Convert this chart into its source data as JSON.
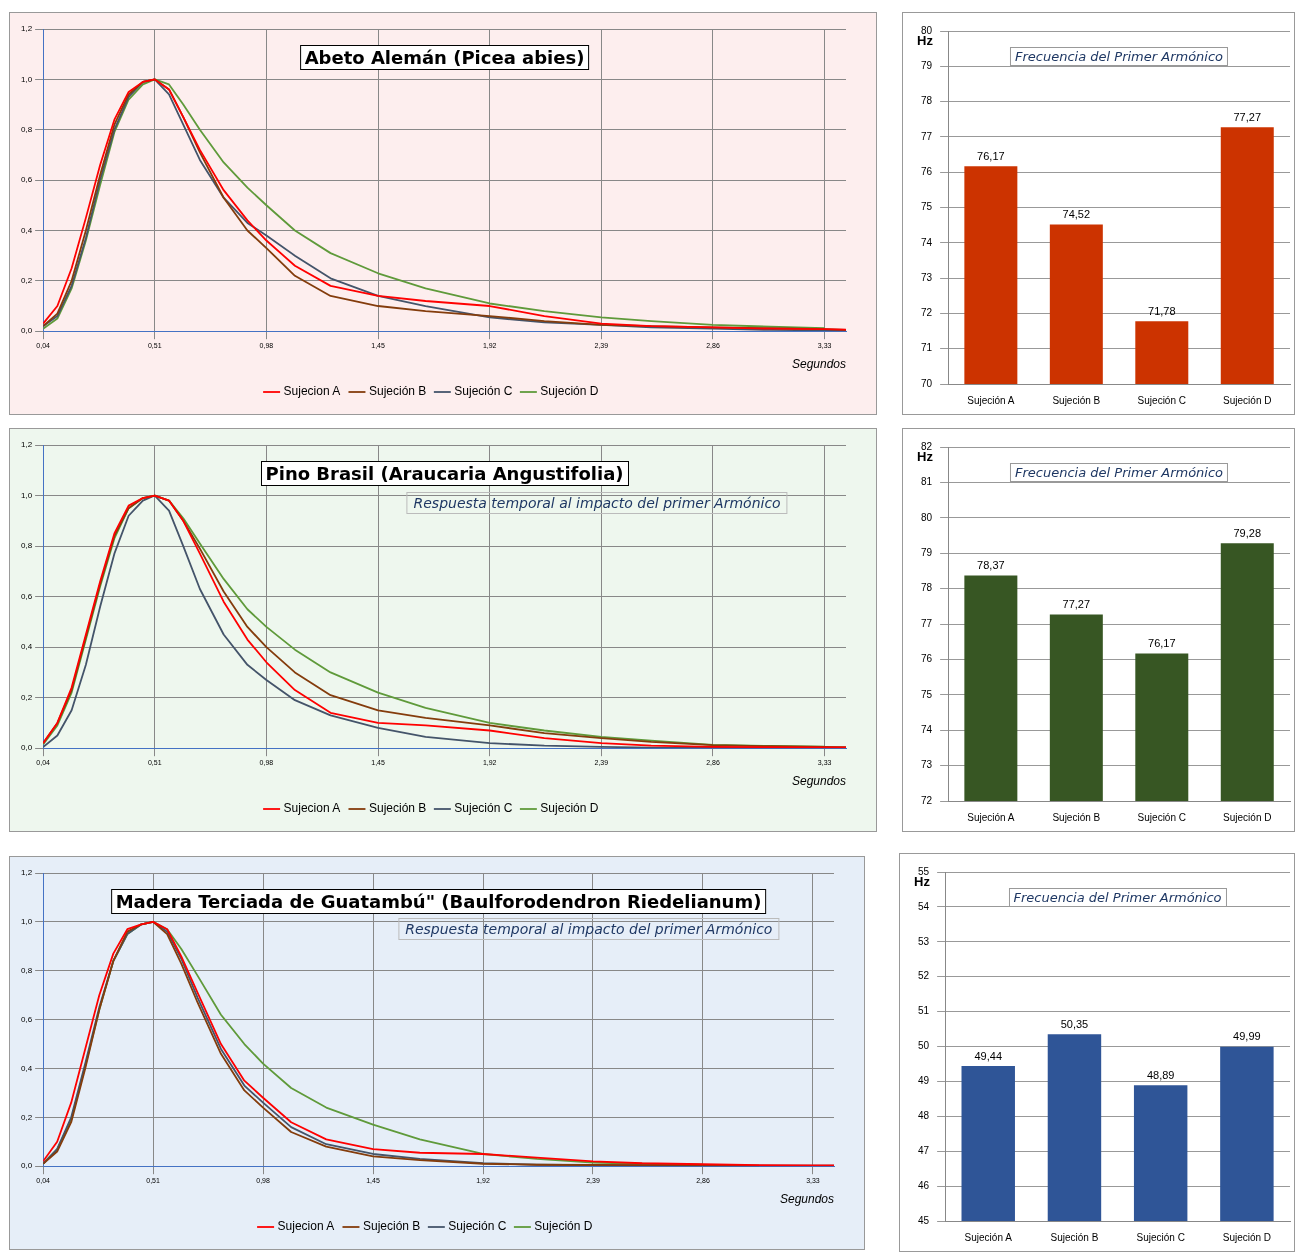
{
  "chart_data": [
    {
      "type": "line",
      "title": "Abeto Alemán (Picea abies)",
      "xlabel": "Segundos",
      "xlim": [
        0.04,
        3.42
      ],
      "ylim": [
        0,
        1.2
      ],
      "grid": true,
      "legend": "bottom",
      "xticks": [
        {
          "value": 0.04,
          "label": "0,04"
        },
        {
          "value": 0.51,
          "label": "0,51"
        },
        {
          "value": 0.98,
          "label": "0,98"
        },
        {
          "value": 1.45,
          "label": "1,45"
        },
        {
          "value": 1.92,
          "label": "1,92"
        },
        {
          "value": 2.39,
          "label": "2,39"
        },
        {
          "value": 2.86,
          "label": "2,86"
        },
        {
          "value": 3.33,
          "label": "3,33"
        }
      ],
      "yticks": [
        {
          "value": 0,
          "label": "0,0"
        },
        {
          "value": 0.2,
          "label": "0,2"
        },
        {
          "value": 0.4,
          "label": "0,4"
        },
        {
          "value": 0.6,
          "label": "0,6"
        },
        {
          "value": 0.8,
          "label": "0,8"
        },
        {
          "value": 1.0,
          "label": "1,0"
        },
        {
          "value": 1.2,
          "label": "1,2"
        }
      ],
      "x": [
        0.04,
        0.1,
        0.16,
        0.22,
        0.28,
        0.34,
        0.4,
        0.46,
        0.51,
        0.57,
        0.63,
        0.7,
        0.8,
        0.9,
        0.98,
        1.1,
        1.25,
        1.45,
        1.65,
        1.92,
        2.15,
        2.39,
        2.6,
        2.86,
        3.1,
        3.33,
        3.42
      ],
      "series": [
        {
          "name": "Sujecion A",
          "color": "#ff0000",
          "values": [
            0.03,
            0.1,
            0.25,
            0.45,
            0.66,
            0.84,
            0.95,
            0.99,
            1.0,
            0.96,
            0.85,
            0.72,
            0.56,
            0.44,
            0.36,
            0.26,
            0.18,
            0.14,
            0.12,
            0.1,
            0.06,
            0.03,
            0.02,
            0.015,
            0.01,
            0.008,
            0.006
          ]
        },
        {
          "name": "Sujeción B",
          "color": "#843c0c",
          "values": [
            0.02,
            0.07,
            0.2,
            0.4,
            0.62,
            0.82,
            0.94,
            0.99,
            1.0,
            0.96,
            0.85,
            0.71,
            0.53,
            0.4,
            0.33,
            0.22,
            0.14,
            0.1,
            0.08,
            0.06,
            0.04,
            0.025,
            0.02,
            0.015,
            0.012,
            0.008,
            0.005
          ]
        },
        {
          "name": "Sujeción C",
          "color": "#44546a",
          "values": [
            0.02,
            0.06,
            0.18,
            0.37,
            0.6,
            0.8,
            0.93,
            0.99,
            1.0,
            0.94,
            0.82,
            0.68,
            0.53,
            0.43,
            0.38,
            0.3,
            0.21,
            0.14,
            0.1,
            0.055,
            0.035,
            0.025,
            0.015,
            0.01,
            0.005,
            0.003,
            0.002
          ]
        },
        {
          "name": "Sujeción D",
          "color": "#5f9a3a",
          "values": [
            0.01,
            0.05,
            0.17,
            0.36,
            0.58,
            0.79,
            0.92,
            0.98,
            1.0,
            0.98,
            0.9,
            0.8,
            0.67,
            0.57,
            0.5,
            0.4,
            0.31,
            0.23,
            0.17,
            0.11,
            0.08,
            0.055,
            0.04,
            0.025,
            0.018,
            0.012,
            null
          ]
        }
      ]
    },
    {
      "type": "bar",
      "title": "Frecuencia del Primer Armónico",
      "ylabel": "Hz",
      "categories": [
        "Sujeción A",
        "Sujeción B",
        "Sujeción C",
        "Sujeción D"
      ],
      "values": [
        76.17,
        74.52,
        71.78,
        77.27
      ],
      "value_labels": [
        "76,17",
        "74,52",
        "71,78",
        "77,27"
      ],
      "color": "#cc3300",
      "ylim": [
        70,
        80
      ],
      "yticks": [
        70,
        71,
        72,
        73,
        74,
        75,
        76,
        77,
        78,
        79,
        80
      ],
      "grid": "y"
    },
    {
      "type": "line",
      "title": "Pino Brasil (Araucaria Angustifolia)",
      "xlabel": "Segundos",
      "annotations": [
        "Respuesta temporal al impacto del primer Armónico"
      ],
      "xlim": [
        0.04,
        3.42
      ],
      "ylim": [
        0,
        1.2
      ],
      "grid": true,
      "legend": "bottom",
      "xticks": [
        {
          "value": 0.04,
          "label": "0,04"
        },
        {
          "value": 0.51,
          "label": "0,51"
        },
        {
          "value": 0.98,
          "label": "0,98"
        },
        {
          "value": 1.45,
          "label": "1,45"
        },
        {
          "value": 1.92,
          "label": "1,92"
        },
        {
          "value": 2.39,
          "label": "2,39"
        },
        {
          "value": 2.86,
          "label": "2,86"
        },
        {
          "value": 3.33,
          "label": "3,33"
        }
      ],
      "yticks": [
        {
          "value": 0,
          "label": "0,0"
        },
        {
          "value": 0.2,
          "label": "0,2"
        },
        {
          "value": 0.4,
          "label": "0,4"
        },
        {
          "value": 0.6,
          "label": "0,6"
        },
        {
          "value": 0.8,
          "label": "0,8"
        },
        {
          "value": 1.0,
          "label": "1,0"
        },
        {
          "value": 1.2,
          "label": "1,2"
        }
      ],
      "x": [
        0.04,
        0.1,
        0.16,
        0.22,
        0.28,
        0.34,
        0.4,
        0.46,
        0.51,
        0.57,
        0.63,
        0.7,
        0.8,
        0.9,
        0.98,
        1.1,
        1.25,
        1.45,
        1.65,
        1.92,
        2.15,
        2.39,
        2.6,
        2.86,
        3.1,
        3.33,
        3.42
      ],
      "series": [
        {
          "name": "Sujecion A",
          "color": "#ff0000",
          "values": [
            0.02,
            0.1,
            0.24,
            0.45,
            0.66,
            0.85,
            0.96,
            0.99,
            1.0,
            0.98,
            0.9,
            0.77,
            0.58,
            0.43,
            0.34,
            0.23,
            0.14,
            0.1,
            0.09,
            0.07,
            0.04,
            0.02,
            0.01,
            0.005,
            0.004,
            0.003,
            0.003
          ]
        },
        {
          "name": "Sujeción B",
          "color": "#843c0c",
          "values": [
            0.02,
            0.1,
            0.23,
            0.44,
            0.65,
            0.84,
            0.95,
            0.99,
            1.0,
            0.98,
            0.9,
            0.79,
            0.62,
            0.48,
            0.4,
            0.3,
            0.21,
            0.15,
            0.12,
            0.09,
            0.06,
            0.04,
            0.025,
            0.012,
            0.008,
            0.005,
            0.004
          ]
        },
        {
          "name": "Sujeción C",
          "color": "#44546a",
          "values": [
            0.005,
            0.05,
            0.15,
            0.33,
            0.56,
            0.77,
            0.92,
            0.98,
            1.0,
            0.94,
            0.8,
            0.63,
            0.45,
            0.33,
            0.27,
            0.19,
            0.13,
            0.08,
            0.045,
            0.02,
            0.01,
            0.005,
            0.002,
            0.001,
            0.001,
            0.001,
            0.001
          ]
        },
        {
          "name": "Sujeción D",
          "color": "#5f9a3a",
          "values": [
            0.015,
            0.09,
            0.22,
            0.43,
            0.64,
            0.83,
            0.95,
            0.99,
            1.0,
            0.98,
            0.91,
            0.81,
            0.67,
            0.55,
            0.48,
            0.39,
            0.3,
            0.22,
            0.16,
            0.1,
            0.07,
            0.045,
            0.03,
            0.013,
            0.009,
            0.006,
            null
          ]
        }
      ]
    },
    {
      "type": "bar",
      "title": "Frecuencia del Primer Armónico",
      "ylabel": "Hz",
      "categories": [
        "Sujeción A",
        "Sujeción B",
        "Sujeción C",
        "Sujeción D"
      ],
      "values": [
        78.37,
        77.27,
        76.17,
        79.28
      ],
      "value_labels": [
        "78,37",
        "77,27",
        "76,17",
        "79,28"
      ],
      "color": "#375623",
      "ylim": [
        72,
        82
      ],
      "yticks": [
        72,
        73,
        74,
        75,
        76,
        77,
        78,
        79,
        80,
        81,
        82
      ],
      "grid": "y"
    },
    {
      "type": "line",
      "title": "Madera Terciada de Guatambú\" (Baulforodendron Riedelianum)",
      "xlabel": "Segundos",
      "annotations": [
        "Respuesta temporal al impacto del primer Armónico"
      ],
      "xlim": [
        0.04,
        3.42
      ],
      "ylim": [
        0,
        1.2
      ],
      "grid": true,
      "legend": "bottom",
      "xticks": [
        {
          "value": 0.04,
          "label": "0,04"
        },
        {
          "value": 0.51,
          "label": "0,51"
        },
        {
          "value": 0.98,
          "label": "0,98"
        },
        {
          "value": 1.45,
          "label": "1,45"
        },
        {
          "value": 1.92,
          "label": "1,92"
        },
        {
          "value": 2.39,
          "label": "2,39"
        },
        {
          "value": 2.86,
          "label": "2,86"
        },
        {
          "value": 3.33,
          "label": "3,33"
        }
      ],
      "yticks": [
        {
          "value": 0,
          "label": "0,0"
        },
        {
          "value": 0.2,
          "label": "0,2"
        },
        {
          "value": 0.4,
          "label": "0,4"
        },
        {
          "value": 0.6,
          "label": "0,6"
        },
        {
          "value": 0.8,
          "label": "0,8"
        },
        {
          "value": 1.0,
          "label": "1,0"
        },
        {
          "value": 1.2,
          "label": "1,2"
        }
      ],
      "x": [
        0.04,
        0.1,
        0.16,
        0.22,
        0.28,
        0.34,
        0.4,
        0.46,
        0.51,
        0.57,
        0.63,
        0.7,
        0.8,
        0.9,
        0.98,
        1.1,
        1.25,
        1.45,
        1.65,
        1.92,
        2.15,
        2.39,
        2.6,
        2.86,
        3.1,
        3.33,
        3.42
      ],
      "series": [
        {
          "name": "Sujecion A",
          "color": "#ff0000",
          "values": [
            0.02,
            0.1,
            0.26,
            0.48,
            0.7,
            0.87,
            0.97,
            0.99,
            1.0,
            0.97,
            0.86,
            0.71,
            0.5,
            0.35,
            0.28,
            0.18,
            0.11,
            0.07,
            0.055,
            0.05,
            0.035,
            0.02,
            0.012,
            0.008,
            0.004,
            0.003,
            0.003
          ]
        },
        {
          "name": "Sujeción B",
          "color": "#843c0c",
          "values": [
            0.01,
            0.06,
            0.18,
            0.4,
            0.64,
            0.84,
            0.96,
            0.99,
            1.0,
            0.95,
            0.83,
            0.67,
            0.46,
            0.31,
            0.24,
            0.14,
            0.08,
            0.04,
            0.025,
            0.01,
            0.006,
            0.005,
            0.004,
            0.003,
            0.002,
            null,
            null
          ]
        },
        {
          "name": "Sujeción C",
          "color": "#44546a",
          "values": [
            0.01,
            0.07,
            0.2,
            0.42,
            0.65,
            0.84,
            0.95,
            0.99,
            1.0,
            0.96,
            0.85,
            0.69,
            0.48,
            0.33,
            0.26,
            0.16,
            0.09,
            0.05,
            0.03,
            0.012,
            0.006,
            0.004,
            0.003,
            0.002,
            0.002,
            0.002,
            0.002
          ]
        },
        {
          "name": "Sujeción D",
          "color": "#5f9a3a",
          "values": [
            0.01,
            0.07,
            0.19,
            0.41,
            0.64,
            0.84,
            0.95,
            0.99,
            1.0,
            0.97,
            0.89,
            0.78,
            0.62,
            0.5,
            0.42,
            0.32,
            0.24,
            0.17,
            0.11,
            0.05,
            0.03,
            0.015,
            0.01,
            0.006,
            null,
            null,
            null
          ]
        }
      ]
    },
    {
      "type": "bar",
      "title": "Frecuencia del Primer Armónico",
      "ylabel": "Hz",
      "categories": [
        "Sujeción A",
        "Sujeción B",
        "Sujeción C",
        "Sujeción D"
      ],
      "values": [
        49.44,
        50.35,
        48.89,
        49.99
      ],
      "value_labels": [
        "49,44",
        "50,35",
        "48,89",
        "49,99"
      ],
      "color": "#2f5597",
      "ylim": [
        45,
        55
      ],
      "yticks": [
        45,
        46,
        47,
        48,
        49,
        50,
        51,
        52,
        53,
        54,
        55
      ],
      "grid": "y"
    }
  ]
}
